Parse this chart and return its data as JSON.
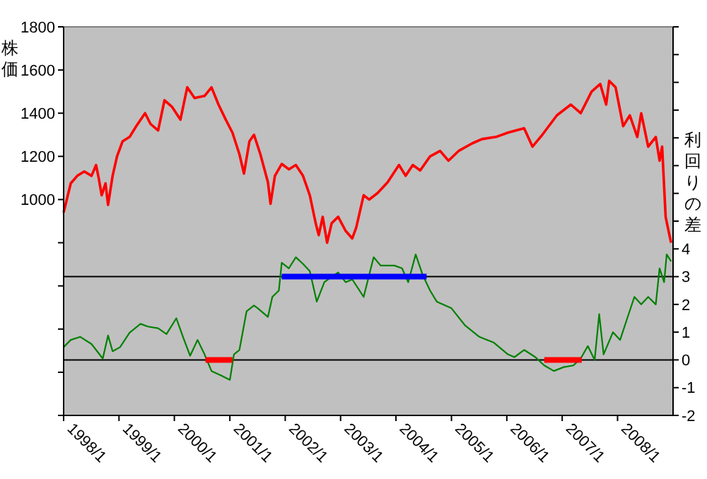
{
  "chart_data": {
    "type": "line",
    "ylabel": "株価",
    "y2label": "利回りの差",
    "xlim": [
      "1998-01-01",
      "2009-01-01"
    ],
    "xticks": [
      {
        "value": "1998-01",
        "label": "1998/1"
      },
      {
        "value": "1999-01",
        "label": "1999/1"
      },
      {
        "value": "2000-01",
        "label": "2000/1"
      },
      {
        "value": "2001-01",
        "label": "2001/1"
      },
      {
        "value": "2002-01",
        "label": "2002/1"
      },
      {
        "value": "2003-01",
        "label": "2003/1"
      },
      {
        "value": "2004-01",
        "label": "2004/1"
      },
      {
        "value": "2005-01",
        "label": "2005/1"
      },
      {
        "value": "2006-01",
        "label": "2006/1"
      },
      {
        "value": "2007-01",
        "label": "2007/1"
      },
      {
        "value": "2008-01",
        "label": "2008/1"
      }
    ],
    "ylim": [
      0,
      1800
    ],
    "yticks": [
      {
        "value": 0,
        "label": null
      },
      {
        "value": 200,
        "label": null
      },
      {
        "value": 400,
        "label": null
      },
      {
        "value": 600,
        "label": null
      },
      {
        "value": 800,
        "label": null
      },
      1000,
      1200,
      1400,
      1600,
      1800
    ],
    "y2lim": [
      -2,
      12
    ],
    "y2ticks": [
      -2,
      -1,
      0,
      1,
      2,
      3,
      4,
      {
        "value": 5,
        "label": null
      },
      {
        "value": 6,
        "label": null
      },
      {
        "value": 7,
        "label": null
      },
      {
        "value": 8,
        "label": null
      },
      {
        "value": 9,
        "label": null
      },
      {
        "value": 10,
        "label": null
      },
      {
        "value": 11,
        "label": null
      },
      {
        "value": 12,
        "label": null
      }
    ],
    "grid": false,
    "marker": "none",
    "line_style": "solid",
    "ref_lines": [
      {
        "axis": "y2",
        "value": 3,
        "color": "#000000"
      },
      {
        "axis": "y2",
        "value": 0,
        "color": "#000000"
      }
    ],
    "series": [
      {
        "color": "#ff0000",
        "x": [
          "1998-01-01",
          "1998-02-17",
          "1998-04-01",
          "1998-05-17",
          "1998-07-04",
          "1998-08-03",
          "1998-08-20",
          "1998-09-09",
          "1998-10-04",
          "1998-10-21",
          "1998-11-20",
          "1998-12-19",
          "1999-01-25",
          "1999-03-12",
          "1999-04-25",
          "1999-06-22",
          "1999-07-28",
          "1999-09-16",
          "1999-10-28",
          "1999-12-16",
          "2000-02-10",
          "2000-03-26",
          "2000-05-13",
          "2000-07-18",
          "2000-09-02",
          "2000-10-18",
          "2000-12-05",
          "2001-01-18",
          "2001-03-05",
          "2001-04-04",
          "2001-05-10",
          "2001-06-09",
          "2001-07-21",
          "2001-09-09",
          "2001-09-26",
          "2001-10-25",
          "2001-12-09",
          "2002-01-25",
          "2002-03-12",
          "2002-04-28",
          "2002-06-12",
          "2002-07-21",
          "2002-08-10",
          "2002-09-05",
          "2002-10-04",
          "2002-11-03",
          "2002-12-16",
          "2003-02-03",
          "2003-03-19",
          "2003-04-14",
          "2003-06-02",
          "2003-07-08",
          "2003-09-02",
          "2003-11-07",
          "2004-01-21",
          "2004-03-05",
          "2004-04-21",
          "2004-06-09",
          "2004-08-13",
          "2004-10-18",
          "2004-12-12",
          "2005-02-17",
          "2005-05-17",
          "2005-07-21",
          "2005-10-21",
          "2006-01-08",
          "2006-04-25",
          "2006-06-19",
          "2006-08-23",
          "2006-11-27",
          "2007-02-27",
          "2007-05-03",
          "2007-07-14",
          "2007-09-09",
          "2007-10-18",
          "2007-11-07",
          "2007-12-19",
          "2008-02-07",
          "2008-03-22",
          "2008-05-10",
          "2008-06-05",
          "2008-07-21",
          "2008-09-09",
          "2008-10-04",
          "2008-10-21",
          "2008-11-13",
          "2008-12-02",
          "2008-12-19"
        ],
        "values": [
          940,
          1075,
          1110,
          1130,
          1110,
          1160,
          1100,
          1020,
          1075,
          975,
          1110,
          1200,
          1270,
          1290,
          1340,
          1400,
          1350,
          1320,
          1460,
          1430,
          1370,
          1520,
          1470,
          1480,
          1520,
          1440,
          1370,
          1310,
          1210,
          1120,
          1270,
          1300,
          1210,
          1080,
          980,
          1110,
          1165,
          1140,
          1160,
          1110,
          1020,
          890,
          835,
          920,
          800,
          890,
          920,
          855,
          820,
          870,
          1020,
          1000,
          1030,
          1080,
          1160,
          1110,
          1160,
          1135,
          1200,
          1225,
          1180,
          1225,
          1260,
          1280,
          1290,
          1310,
          1330,
          1245,
          1300,
          1390,
          1440,
          1400,
          1500,
          1535,
          1440,
          1550,
          1520,
          1340,
          1390,
          1290,
          1400,
          1245,
          1290,
          1180,
          1245,
          920,
          855,
          800
        ]
      },
      {
        "color": "#008000",
        "axis": "y2",
        "x": [
          "1998-01-01",
          "1998-02-17",
          "1998-04-21",
          "1998-07-04",
          "1998-09-16",
          "1998-10-21",
          "1998-11-20",
          "1999-01-08",
          "1999-03-12",
          "1999-05-23",
          "1999-07-11",
          "1999-09-16",
          "1999-11-10",
          "2000-01-14",
          "2000-02-27",
          "2000-04-14",
          "2000-06-02",
          "2000-07-18",
          "2000-09-02",
          "2000-11-07",
          "2001-01-01",
          "2001-01-28",
          "2001-03-05",
          "2001-04-21",
          "2001-06-09",
          "2001-07-04",
          "2001-09-09",
          "2001-10-08",
          "2001-11-20",
          "2001-12-09",
          "2002-01-25",
          "2002-03-12",
          "2002-04-28",
          "2002-06-12",
          "2002-07-28",
          "2002-09-16",
          "2002-11-03",
          "2002-12-16",
          "2003-02-03",
          "2003-03-19",
          "2003-06-02",
          "2003-08-07",
          "2003-09-22",
          "2003-12-22",
          "2004-02-10",
          "2004-03-22",
          "2004-05-10",
          "2004-06-26",
          "2004-08-13",
          "2004-09-26",
          "2005-01-01",
          "2005-04-01",
          "2005-07-04",
          "2005-10-08",
          "2006-01-08",
          "2006-02-20",
          "2006-04-25",
          "2006-07-08",
          "2006-09-05",
          "2006-11-07",
          "2007-01-11",
          "2007-03-16",
          "2007-05-03",
          "2007-06-19",
          "2007-08-03",
          "2007-09-02",
          "2007-10-01",
          "2007-12-02",
          "2008-01-18",
          "2008-03-05",
          "2008-04-21",
          "2008-06-05",
          "2008-07-21",
          "2008-09-09",
          "2008-10-04",
          "2008-11-03",
          "2008-11-20",
          "2008-12-19"
        ],
        "values": [
          0.46,
          0.72,
          0.83,
          0.57,
          0.05,
          0.88,
          0.31,
          0.46,
          0.98,
          1.3,
          1.2,
          1.14,
          0.93,
          1.5,
          0.83,
          0.15,
          0.72,
          0.2,
          -0.4,
          -0.57,
          -0.72,
          0.2,
          0.36,
          1.75,
          1.96,
          1.86,
          1.55,
          2.27,
          2.5,
          3.5,
          3.3,
          3.7,
          3.46,
          3.2,
          2.1,
          2.8,
          3.0,
          3.15,
          2.8,
          2.9,
          2.27,
          3.7,
          3.4,
          3.4,
          3.3,
          2.8,
          3.8,
          3.05,
          2.5,
          2.1,
          1.86,
          1.24,
          0.83,
          0.62,
          0.2,
          0.1,
          0.36,
          0.1,
          -0.2,
          -0.4,
          -0.26,
          -0.2,
          0.05,
          0.5,
          0,
          1.65,
          0.2,
          1.0,
          0.72,
          1.5,
          2.27,
          2.0,
          2.27,
          2.0,
          3.3,
          2.8,
          3.8,
          3.55
        ]
      },
      {
        "color": "#0000ff",
        "axis": "y2",
        "x": [
          "2001-12-09",
          "2004-07-21"
        ],
        "values": [
          3,
          3
        ]
      },
      {
        "color": "#ff0000",
        "axis": "y2",
        "x": [
          "2000-07-24",
          "2001-01-18"
        ],
        "values": [
          0,
          0
        ]
      },
      {
        "color": "#ff0000",
        "axis": "y2",
        "x": [
          "2006-09-05",
          "2007-05-10"
        ],
        "values": [
          0,
          0
        ]
      }
    ]
  }
}
